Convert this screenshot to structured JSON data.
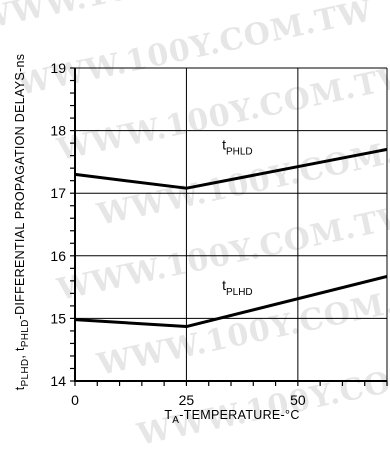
{
  "watermark": "WWW.100Y.COM.TW",
  "chart_data": {
    "type": "line",
    "xlabel": {
      "main": "T",
      "sub": "A",
      "rest": "-TEMPERATURE-°C"
    },
    "ylabel": {
      "p1": "t",
      "s1": "PLHD",
      "p2": ", t",
      "s2": "PHLD",
      "p3": "-DIFFERENTIAL PROPAGATION DELAYS-ns"
    },
    "xlim": [
      0,
      70
    ],
    "ylim": [
      14,
      19
    ],
    "x_ticks": [
      0,
      25,
      50
    ],
    "y_ticks": [
      14,
      15,
      16,
      17,
      18,
      19
    ],
    "x_gridlines": [
      0,
      25,
      50,
      70
    ],
    "y_minor_step": 0.2,
    "x_minor_step": 5,
    "grid": true,
    "series": [
      {
        "name": "t",
        "name_sub": "PHLD",
        "x": [
          0,
          25,
          70
        ],
        "y": [
          17.3,
          17.08,
          17.7
        ],
        "label_at": [
          33,
          17.7
        ]
      },
      {
        "name": "t",
        "name_sub": "PLHD",
        "x": [
          0,
          25,
          70
        ],
        "y": [
          14.98,
          14.87,
          15.67
        ],
        "label_at": [
          33,
          15.45
        ]
      }
    ]
  }
}
